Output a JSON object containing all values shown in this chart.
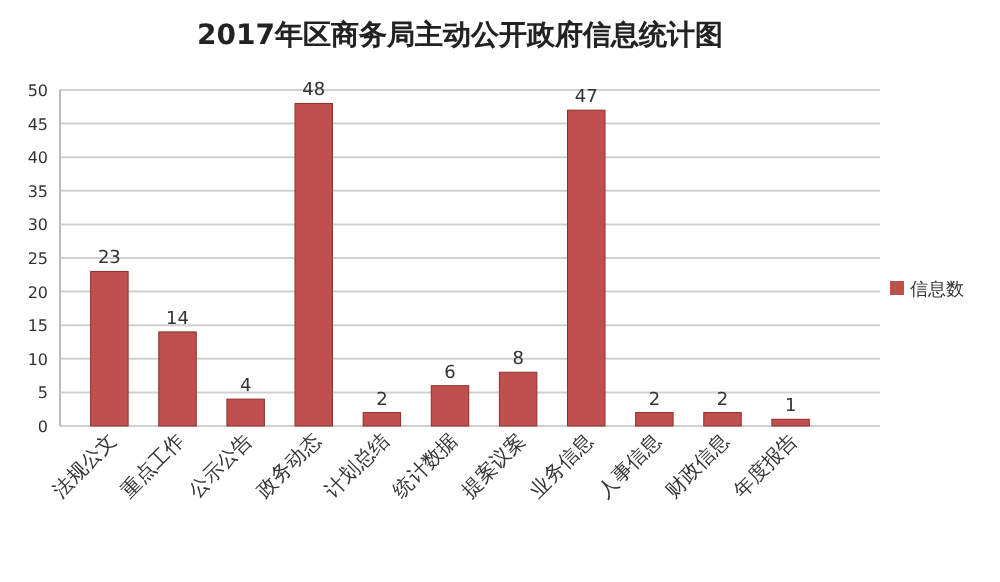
{
  "chart_data": {
    "type": "bar",
    "title": "2017年区商务局主动公开政府信息统计图",
    "categories": [
      "法规公文",
      "重点工作",
      "公示公告",
      "政务动态",
      "计划总结",
      "统计数据",
      "提案议案",
      "业务信息",
      "人事信息",
      "财政信息",
      "年度报告"
    ],
    "series": [
      {
        "name": "信息数",
        "color": "#c0504d",
        "values": [
          23,
          14,
          4,
          48,
          2,
          6,
          8,
          47,
          2,
          2,
          1
        ]
      }
    ],
    "ylim": [
      0,
      50
    ],
    "yticks": [
      0,
      5,
      10,
      15,
      20,
      25,
      30,
      35,
      40,
      45,
      50
    ],
    "grid": "y",
    "legend": "right",
    "data_labels": true
  }
}
